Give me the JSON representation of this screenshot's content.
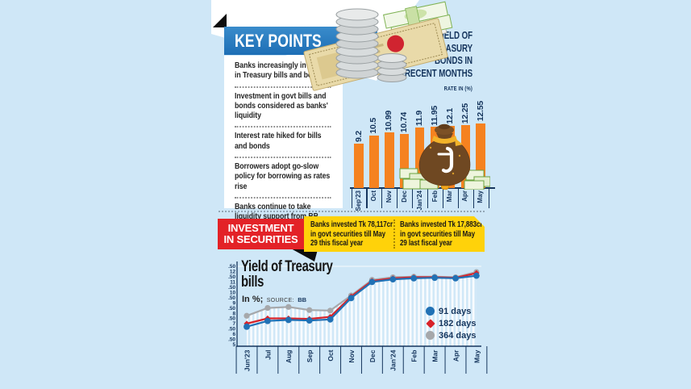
{
  "page": {
    "background": "#cfe7f7"
  },
  "colors": {
    "banner_blue": "#2176bc",
    "bar_orange": "#f58220",
    "navy_text": "#15355d",
    "red_label": "#e32227",
    "yellow_box": "#ffd20a",
    "line_blue": "#2171b5",
    "line_red": "#d8232a",
    "line_gray": "#a6a8ab",
    "fold_black": "#0d0d0d"
  },
  "key_points": {
    "title": "KEY POINTS",
    "items": [
      "Banks increasingly investing in Treasury bills and bonds",
      "Investment in govt bills and bonds considered as banks' liquidity",
      "Interest rate hiked for bills and bonds",
      "Borrowers adopt go-slow policy for borrowing as rates rise",
      "Banks continue to take liquidity support from BB"
    ]
  },
  "investment": {
    "label_lines": [
      "INVESTMENT",
      "IN SECURITIES"
    ],
    "box1_lines": [
      "Banks invested Tk 78,117cr",
      "in govt securities till May",
      "29 this fiscal year"
    ],
    "box2_lines": [
      "Banks invested Tk 17,883cr",
      "in govt securities till May",
      "29 last fiscal year"
    ]
  },
  "chart_data": [
    {
      "type": "bar",
      "title": "YIELD OF TREASURY BONDS IN RECENT MONTHS",
      "title_lines": [
        "YIELD OF",
        "TREASURY",
        "BONDS IN",
        "RECENT MONTHS"
      ],
      "subtitle": "RATE IN (%)",
      "categories": [
        "Sep'23",
        "Oct",
        "Nov",
        "Dec",
        "Jan'24",
        "Feb",
        "Mar",
        "Apr",
        "May"
      ],
      "values": [
        9.2,
        10.5,
        10.99,
        10.74,
        11.9,
        11.95,
        12.1,
        12.25,
        12.55
      ],
      "bar_color": "#f58220",
      "value_labels_rotated": true,
      "ylim": [
        0,
        12.55
      ]
    },
    {
      "type": "line",
      "title": "Yield of Treasury bills",
      "title_lines": [
        "Yield of Treasury",
        "bills"
      ],
      "subtitle_unit": "In %;",
      "source_label": "SOURCE:",
      "source_value": "BB",
      "categories": [
        "Jun'23",
        "Jul",
        "Aug",
        "Sep",
        "Oct",
        "Nov",
        "Dec",
        "Jan'24",
        "Feb",
        "Mar",
        "Apr",
        "May"
      ],
      "series": [
        {
          "name": "91 days",
          "color": "#2171b5",
          "marker": "circle",
          "values": [
            6.7,
            7.25,
            7.35,
            7.3,
            7.4,
            9.45,
            11.0,
            11.25,
            11.35,
            11.4,
            11.35,
            11.6
          ]
        },
        {
          "name": "182 days",
          "color": "#d8232a",
          "marker": "diamond",
          "values": [
            7.0,
            7.5,
            7.5,
            7.45,
            7.65,
            9.6,
            11.1,
            11.35,
            11.45,
            11.45,
            11.4,
            11.85
          ]
        },
        {
          "name": "364 days",
          "color": "#a6a8ab",
          "marker": "circle",
          "values": [
            7.75,
            8.5,
            8.6,
            8.3,
            8.25,
            9.7,
            11.2,
            11.45,
            11.5,
            11.5,
            11.45,
            11.95
          ]
        }
      ],
      "ylim": [
        5,
        12.5
      ],
      "ytick_step": 0.5,
      "ytick_labels": [
        "12.50",
        "12",
        "11.50",
        "11",
        "10.50",
        "10",
        "9.50",
        "9",
        "8.50",
        "8",
        "7.50",
        "7",
        "6.50",
        "6",
        "5.50",
        "5"
      ],
      "legend_position": "right-inside",
      "area_fill": "striped"
    }
  ]
}
